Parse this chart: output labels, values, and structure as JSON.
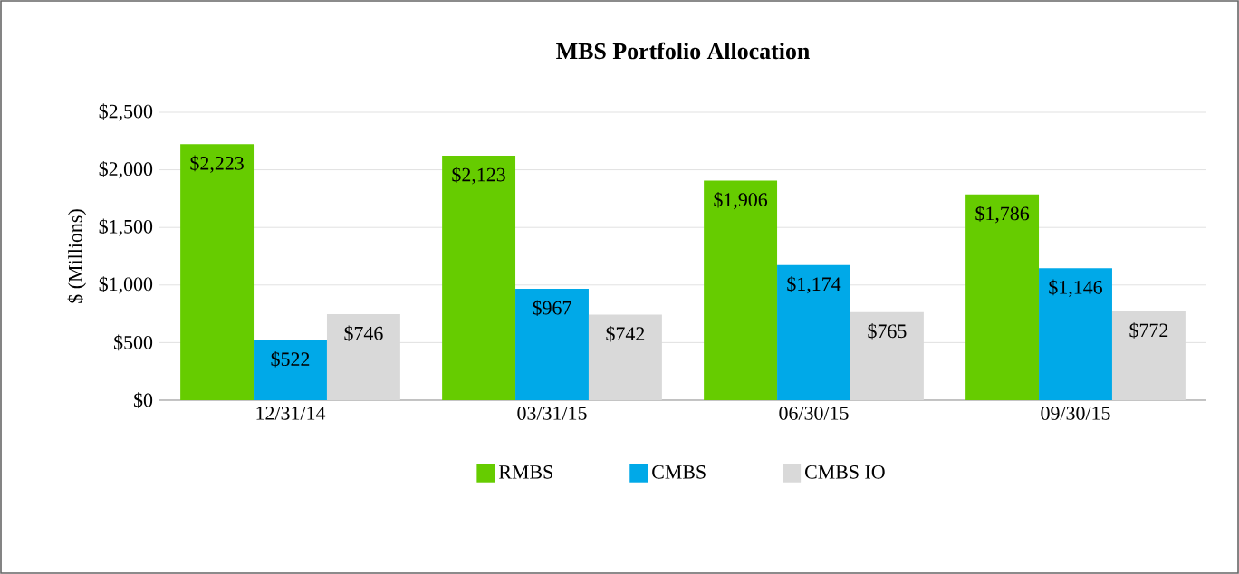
{
  "chart_data": {
    "type": "bar",
    "title": "MBS Portfolio Allocation",
    "ylabel": "$ (Millions)",
    "categories": [
      "12/31/14",
      "03/31/15",
      "06/30/15",
      "09/30/15"
    ],
    "series": [
      {
        "name": "RMBS",
        "color": "#66cc00",
        "values": [
          2223,
          2123,
          1906,
          1786
        ],
        "value_labels": [
          "$2,223",
          "$2,123",
          "$1,906",
          "$1,786"
        ]
      },
      {
        "name": "CMBS",
        "color": "#00a9e8",
        "values": [
          522,
          967,
          1174,
          1146
        ],
        "value_labels": [
          "$522",
          "$967",
          "$1,174",
          "$1,146"
        ]
      },
      {
        "name": "CMBS IO",
        "color": "#d9d9d9",
        "values": [
          746,
          742,
          765,
          772
        ],
        "value_labels": [
          "$746",
          "$742",
          "$765",
          "$772"
        ]
      }
    ],
    "ylim": [
      0,
      2500
    ],
    "yticks": [
      {
        "value": 0,
        "label": "$0"
      },
      {
        "value": 500,
        "label": "$500"
      },
      {
        "value": 1000,
        "label": "$1,000"
      },
      {
        "value": 1500,
        "label": "$1,500"
      },
      {
        "value": 2000,
        "label": "$2,000"
      },
      {
        "value": 2500,
        "label": "$2,500"
      }
    ],
    "grid": "y",
    "legend": "bottom"
  }
}
